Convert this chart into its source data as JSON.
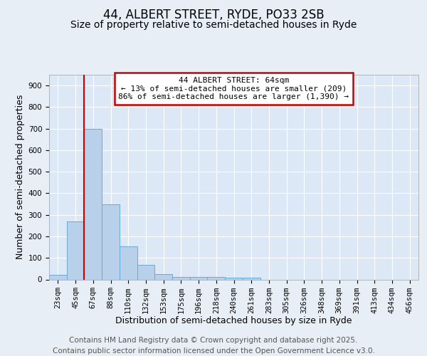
{
  "title": "44, ALBERT STREET, RYDE, PO33 2SB",
  "subtitle": "Size of property relative to semi-detached houses in Ryde",
  "xlabel": "Distribution of semi-detached houses by size in Ryde",
  "ylabel": "Number of semi-detached properties",
  "bar_labels": [
    "23sqm",
    "45sqm",
    "67sqm",
    "88sqm",
    "110sqm",
    "132sqm",
    "153sqm",
    "175sqm",
    "196sqm",
    "218sqm",
    "240sqm",
    "261sqm",
    "283sqm",
    "305sqm",
    "326sqm",
    "348sqm",
    "369sqm",
    "391sqm",
    "413sqm",
    "434sqm",
    "456sqm"
  ],
  "bar_values": [
    22,
    270,
    700,
    350,
    155,
    68,
    25,
    12,
    12,
    13,
    8,
    7,
    0,
    0,
    0,
    0,
    0,
    0,
    0,
    0,
    0
  ],
  "bar_color": "#b8d0ea",
  "bar_edge_color": "#6aaad4",
  "vline_color": "#cc0000",
  "annotation_text": "44 ALBERT STREET: 64sqm\n← 13% of semi-detached houses are smaller (209)\n86% of semi-detached houses are larger (1,390) →",
  "annotation_box_edgecolor": "#cc0000",
  "ylim": [
    0,
    950
  ],
  "yticks": [
    0,
    100,
    200,
    300,
    400,
    500,
    600,
    700,
    800,
    900
  ],
  "footer_text": "Contains HM Land Registry data © Crown copyright and database right 2025.\nContains public sector information licensed under the Open Government Licence v3.0.",
  "background_color": "#e8eef5",
  "plot_background_color": "#dce8f5",
  "grid_color": "#ffffff",
  "title_fontsize": 12,
  "subtitle_fontsize": 10,
  "axis_label_fontsize": 9,
  "tick_fontsize": 7.5,
  "footer_fontsize": 7.5
}
